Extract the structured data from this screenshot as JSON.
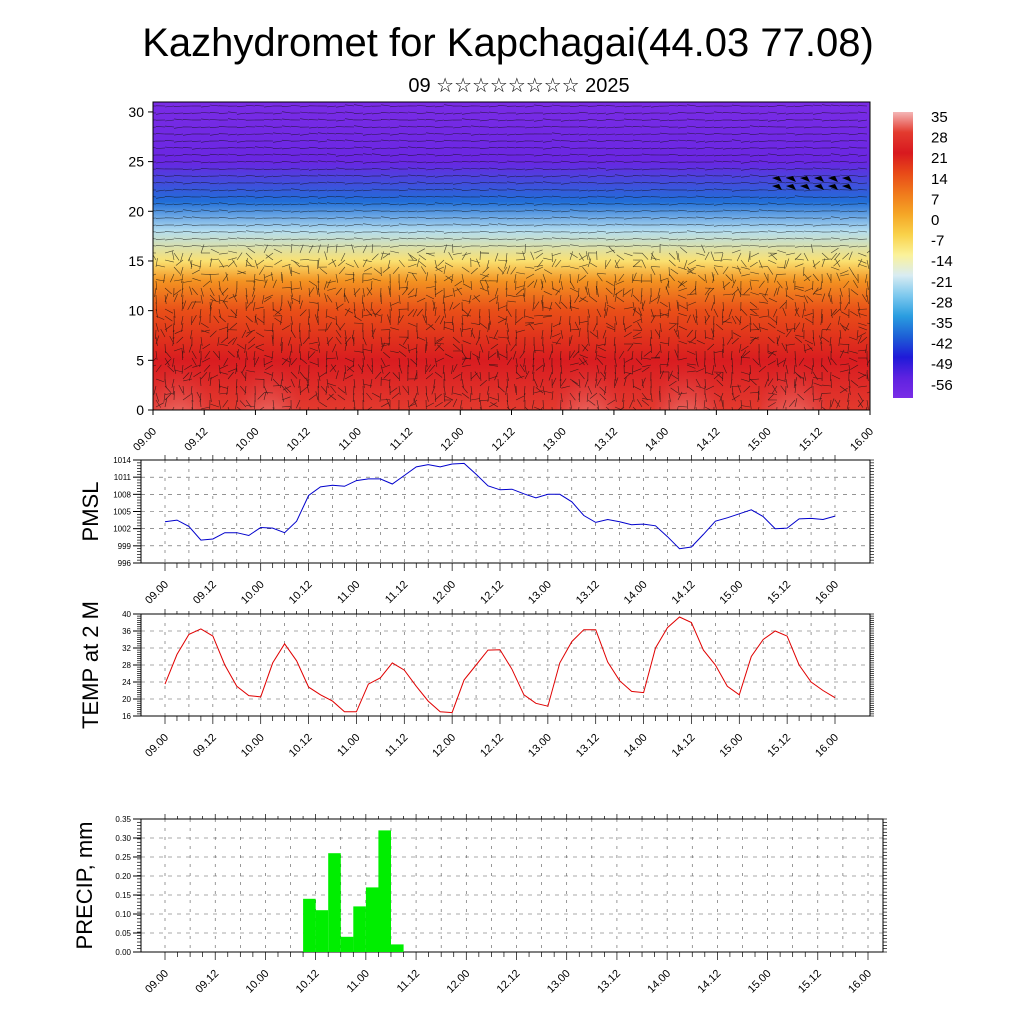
{
  "title": "Kazhydromet for Kapchagai(44.03 77.08)",
  "subtitle": "09 ☆☆☆☆☆☆☆☆ 2025",
  "time_labels": [
    "09.00",
    "09.12",
    "10.00",
    "10.12",
    "11.00",
    "11.12",
    "12.00",
    "12.12",
    "13.00",
    "13.12",
    "14.00",
    "14.12",
    "15.00",
    "15.12",
    "16.00"
  ],
  "colors": {
    "pmsl_line": "#0000cc",
    "temp_line": "#e00000",
    "precip_bar": "#00ee00",
    "grid": "#555555"
  },
  "colorbar": {
    "labels": [
      "35",
      "28",
      "21",
      "14",
      "7",
      "0",
      "-7",
      "-14",
      "-21",
      "-28",
      "-35",
      "-42",
      "-49",
      "-56"
    ],
    "stops": [
      "#f4b6b6",
      "#e33b2f",
      "#d8191f",
      "#e84a18",
      "#f07a1c",
      "#f5a626",
      "#f9d24a",
      "#fbf29a",
      "#d9ecf2",
      "#7cc8ee",
      "#2a9de0",
      "#1d5fd6",
      "#1f1ad8",
      "#5e22e0",
      "#7a2ce6"
    ]
  },
  "chart_data": [
    {
      "type": "heatmap",
      "title": "",
      "xlabel": "",
      "ylabel": "",
      "x_ticks": [
        "09.00",
        "09.12",
        "10.00",
        "10.12",
        "11.00",
        "11.12",
        "12.00",
        "12.12",
        "13.00",
        "13.12",
        "14.00",
        "14.12",
        "15.00",
        "15.12",
        "16.00"
      ],
      "y_ticks": [
        0,
        5,
        10,
        15,
        20,
        25,
        30
      ],
      "ylim": [
        0,
        31
      ],
      "value_range": [
        -56,
        35
      ],
      "bands": [
        {
          "level": 0,
          "value": 28
        },
        {
          "level": 5,
          "value": 22
        },
        {
          "level": 10,
          "value": 14
        },
        {
          "level": 13,
          "value": 4
        },
        {
          "level": 15,
          "value": -9
        },
        {
          "level": 18,
          "value": -22
        },
        {
          "level": 21,
          "value": -38
        },
        {
          "level": 25,
          "value": -56
        },
        {
          "level": 28,
          "value": -58
        },
        {
          "level": 31,
          "value": -60
        }
      ],
      "warm_plumes_x": [
        "09.06",
        "10.03",
        "13.06",
        "14.05",
        "15.06"
      ],
      "wind_barbs": true
    },
    {
      "type": "line",
      "ylabel": "PMSL",
      "ylim": [
        996,
        1014
      ],
      "y_ticks": [
        996,
        999,
        1002,
        1005,
        1008,
        1011,
        1014
      ],
      "x_ticks": [
        "09.00",
        "09.12",
        "10.00",
        "10.12",
        "11.00",
        "11.12",
        "12.00",
        "12.12",
        "13.00",
        "13.12",
        "14.00",
        "14.12",
        "15.00",
        "15.12",
        "16.00"
      ],
      "grid": true,
      "series": [
        {
          "x": [
            0,
            3,
            6,
            9,
            12,
            15,
            18,
            21,
            24,
            27,
            30,
            33,
            36,
            39,
            42,
            45,
            48,
            51,
            54,
            57,
            60,
            63,
            66,
            69,
            72,
            75,
            78,
            81,
            84,
            87,
            90,
            93,
            96,
            99,
            102,
            105,
            108,
            111,
            114,
            117,
            120,
            123,
            126,
            129,
            132,
            135,
            138,
            141,
            144,
            147,
            150,
            153,
            156,
            159,
            162,
            165,
            168
          ],
          "values": [
            1003.2,
            1003.5,
            1002.4,
            1000.0,
            1000.2,
            1001.3,
            1001.3,
            1000.8,
            1002.2,
            1002.1,
            1001.3,
            1003.3,
            1007.8,
            1009.3,
            1009.6,
            1009.4,
            1010.4,
            1010.7,
            1010.7,
            1009.8,
            1011.3,
            1012.8,
            1013.2,
            1012.8,
            1013.3,
            1013.4,
            1011.5,
            1009.5,
            1008.8,
            1008.9,
            1008.1,
            1007.4,
            1008.0,
            1008.0,
            1006.7,
            1004.3,
            1003.1,
            1003.6,
            1003.2,
            1002.7,
            1002.8,
            1002.5,
            1000.6,
            998.5,
            998.8,
            1001.0,
            1003.3,
            1003.9,
            1004.6,
            1005.3,
            1004.1,
            1002.0,
            1002.1,
            1003.7,
            1003.8,
            1003.6,
            1004.2
          ]
        }
      ]
    },
    {
      "type": "line",
      "ylabel": "TEMP at 2 M",
      "ylim": [
        16,
        40
      ],
      "y_ticks": [
        16,
        20,
        24,
        28,
        32,
        36,
        40
      ],
      "x_ticks": [
        "09.00",
        "09.12",
        "10.00",
        "10.12",
        "11.00",
        "11.12",
        "12.00",
        "12.12",
        "13.00",
        "13.12",
        "14.00",
        "14.12",
        "15.00",
        "15.12",
        "16.00"
      ],
      "grid": true,
      "series": [
        {
          "x": [
            0,
            3,
            6,
            9,
            12,
            15,
            18,
            21,
            24,
            27,
            30,
            33,
            36,
            39,
            42,
            45,
            48,
            51,
            54,
            57,
            60,
            63,
            66,
            69,
            72,
            75,
            78,
            81,
            84,
            87,
            90,
            93,
            96,
            99,
            102,
            105,
            108,
            111,
            114,
            117,
            120,
            123,
            126,
            129,
            132,
            135,
            138,
            141,
            144,
            147,
            150,
            153,
            156,
            159,
            162,
            165,
            168
          ],
          "values": [
            23.5,
            30.5,
            35.2,
            36.5,
            34.8,
            28.0,
            23.0,
            20.8,
            20.5,
            28.5,
            33.0,
            29.0,
            22.8,
            21.0,
            19.5,
            17.0,
            17.0,
            23.5,
            25.0,
            28.5,
            26.8,
            23.0,
            19.5,
            17.0,
            16.8,
            24.5,
            28.0,
            31.5,
            31.6,
            27.0,
            21.0,
            19.0,
            18.3,
            28.5,
            33.5,
            36.3,
            36.3,
            28.7,
            24.3,
            21.8,
            21.5,
            32.0,
            36.8,
            39.3,
            38.0,
            31.5,
            28.0,
            23.0,
            21.0,
            30.0,
            34.0,
            36.0,
            34.8,
            28.0,
            24.0,
            22.0,
            20.3
          ]
        }
      ]
    },
    {
      "type": "bar",
      "ylabel": "PRECIP, mm",
      "ylim": [
        0,
        0.35
      ],
      "y_ticks": [
        "0.00",
        "0.05",
        "0.10",
        "0.15",
        "0.20",
        "0.25",
        "0.30",
        "0.35"
      ],
      "x_ticks": [
        "09.00",
        "09.12",
        "10.00",
        "10.12",
        "11.00",
        "11.12",
        "12.00",
        "12.12",
        "13.00",
        "13.12",
        "14.00",
        "14.12",
        "15.00",
        "15.12",
        "16.00"
      ],
      "grid": true,
      "bars": [
        {
          "start": 33,
          "end": 36,
          "value": 0.14
        },
        {
          "start": 36,
          "end": 39,
          "value": 0.11
        },
        {
          "start": 39,
          "end": 42,
          "value": 0.26
        },
        {
          "start": 42,
          "end": 45,
          "value": 0.04
        },
        {
          "start": 45,
          "end": 48,
          "value": 0.12
        },
        {
          "start": 48,
          "end": 51,
          "value": 0.17
        },
        {
          "start": 51,
          "end": 54,
          "value": 0.32
        },
        {
          "start": 54,
          "end": 57,
          "value": 0.02
        }
      ]
    }
  ]
}
